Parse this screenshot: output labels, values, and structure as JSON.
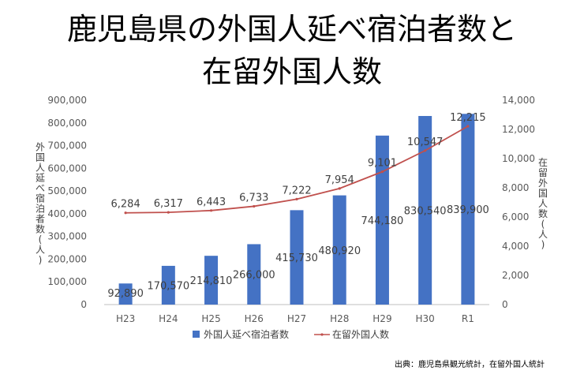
{
  "title_lines": [
    "鹿児島県の外国人延べ宿泊者数と",
    "在留外国人数"
  ],
  "source_note": "出典：鹿児島県観光統計，在留外国人統計",
  "chart_data": {
    "type": "bar",
    "categories": [
      "H23",
      "H24",
      "H25",
      "H26",
      "H27",
      "H28",
      "H29",
      "H30",
      "R1"
    ],
    "series": [
      {
        "name": "外国人延べ宿泊者数",
        "type": "bar",
        "axis": "left",
        "color": "#4472C4",
        "values": [
          92890,
          170570,
          214810,
          266000,
          415730,
          480920,
          744180,
          830540,
          839900
        ],
        "labels": [
          "92,890",
          "170,570",
          "214,810",
          "266,000",
          "415,730",
          "480,920",
          "744,180",
          "830,540",
          "839,900"
        ]
      },
      {
        "name": "在留外国人数",
        "type": "line",
        "axis": "right",
        "color": "#C0504D",
        "values": [
          6284,
          6317,
          6443,
          6733,
          7222,
          7954,
          9101,
          10547,
          12215
        ],
        "labels": [
          "6,284",
          "6,317",
          "6,443",
          "6,733",
          "7,222",
          "7,954",
          "9,101",
          "10,547",
          "12,215"
        ]
      }
    ],
    "ylabel_left": [
      "外",
      "国",
      "人",
      "延",
      "べ",
      "宿",
      "泊",
      "者",
      "数",
      "(",
      "人",
      ")"
    ],
    "ylabel_right": [
      "在",
      "留",
      "外",
      "国",
      "人",
      "数",
      "(",
      "人",
      ")"
    ],
    "ylim_left": [
      0,
      900000
    ],
    "ylim_right": [
      0,
      14000
    ],
    "yticks_left": [
      "0",
      "100,000",
      "200,000",
      "300,000",
      "400,000",
      "500,000",
      "600,000",
      "700,000",
      "800,000",
      "900,000"
    ],
    "yticks_right": [
      "0",
      "2,000",
      "4,000",
      "6,000",
      "8,000",
      "10,000",
      "12,000",
      "14,000"
    ],
    "legend": "bottom",
    "grid": false
  }
}
